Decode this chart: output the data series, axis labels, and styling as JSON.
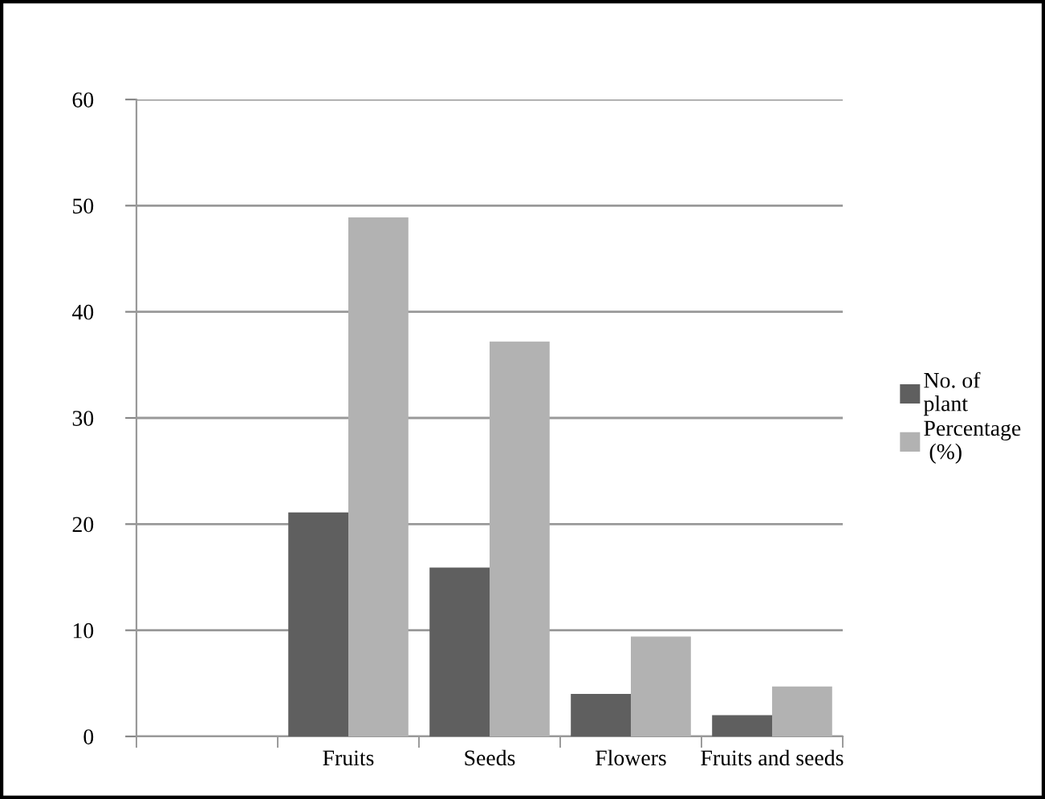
{
  "chart_data": {
    "type": "bar",
    "categories": [
      null,
      "Fruits",
      "Seeds",
      "Flowers",
      "Fruits and seeds"
    ],
    "series": [
      {
        "name": "No. of\nplant",
        "color": "#5f5f5f",
        "values": [
          null,
          21.1,
          15.9,
          4.0,
          2.0
        ]
      },
      {
        "name": "Percentage\n (%)",
        "color": "#b2b2b2",
        "values": [
          null,
          48.9,
          37.2,
          9.4,
          4.7
        ]
      }
    ],
    "ylim": [
      0,
      60
    ],
    "yticks": [
      0,
      10,
      20,
      30,
      40,
      50,
      60
    ],
    "grid": "y",
    "legend": "right"
  }
}
